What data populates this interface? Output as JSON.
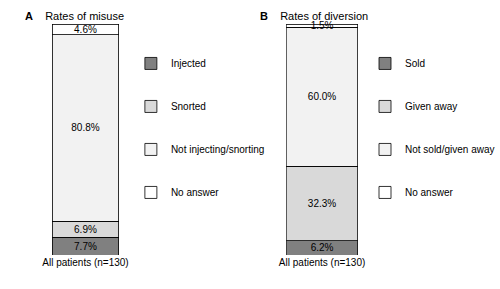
{
  "chart_data": [
    {
      "type": "bar",
      "panel": "A",
      "title": "Rates of misuse",
      "categories": [
        "All patients (n=130)"
      ],
      "series": [
        {
          "name": "Injected",
          "color": "#808080",
          "values": [
            7.7
          ],
          "value_labels": [
            "7.7%"
          ]
        },
        {
          "name": "Snorted",
          "color": "#d9d9d9",
          "values": [
            6.9
          ],
          "value_labels": [
            "6.9%"
          ]
        },
        {
          "name": "Not injecting/snorting",
          "color": "#f2f2f2",
          "values": [
            80.8
          ],
          "value_labels": [
            "80.8%"
          ]
        },
        {
          "name": "No answer",
          "color": "#ffffff",
          "values": [
            4.6
          ],
          "value_labels": [
            "4.6%"
          ]
        }
      ],
      "stacked": true,
      "data_labels": true,
      "ylim": [
        0,
        100
      ],
      "tick_labels": "x",
      "grid": false,
      "legend": "right"
    },
    {
      "type": "bar",
      "panel": "B",
      "title": "Rates of diversion",
      "categories": [
        "All patients (n=130)"
      ],
      "series": [
        {
          "name": "Sold",
          "color": "#808080",
          "values": [
            6.2
          ],
          "value_labels": [
            "6.2%"
          ]
        },
        {
          "name": "Given away",
          "color": "#d9d9d9",
          "values": [
            32.3
          ],
          "value_labels": [
            "32.3%"
          ]
        },
        {
          "name": "Not sold/given away",
          "color": "#f2f2f2",
          "values": [
            60.0
          ],
          "value_labels": [
            "60.0%"
          ]
        },
        {
          "name": "No answer",
          "color": "#ffffff",
          "values": [
            1.5
          ],
          "value_labels": [
            "1.5%"
          ]
        }
      ],
      "stacked": true,
      "data_labels": true,
      "ylim": [
        0,
        100
      ],
      "tick_labels": "x",
      "grid": false,
      "legend": "right"
    }
  ]
}
